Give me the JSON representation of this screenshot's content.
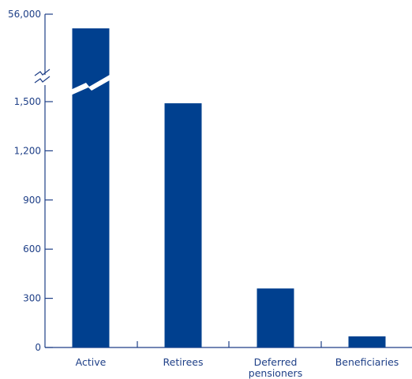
{
  "chart_data": {
    "type": "bar",
    "categories": [
      [
        "Active"
      ],
      [
        "Retirees"
      ],
      [
        "Deferred",
        "pensioners"
      ],
      [
        "Beneficiaries"
      ]
    ],
    "values": [
      56000,
      1490,
      360,
      68
    ],
    "yticks": [
      0,
      300,
      600,
      900,
      1200,
      1500,
      56000
    ],
    "ytick_labels": [
      "0",
      "300",
      "600",
      "900",
      "1,200",
      "1,500",
      "56,000"
    ],
    "ylim": [
      0,
      1500
    ],
    "y_break": true,
    "title": "",
    "xlabel": "",
    "ylabel": "",
    "grid": false,
    "colors": {
      "bar": "#00408f",
      "axis": "#1e3f87",
      "text": "#1e3f87"
    }
  }
}
